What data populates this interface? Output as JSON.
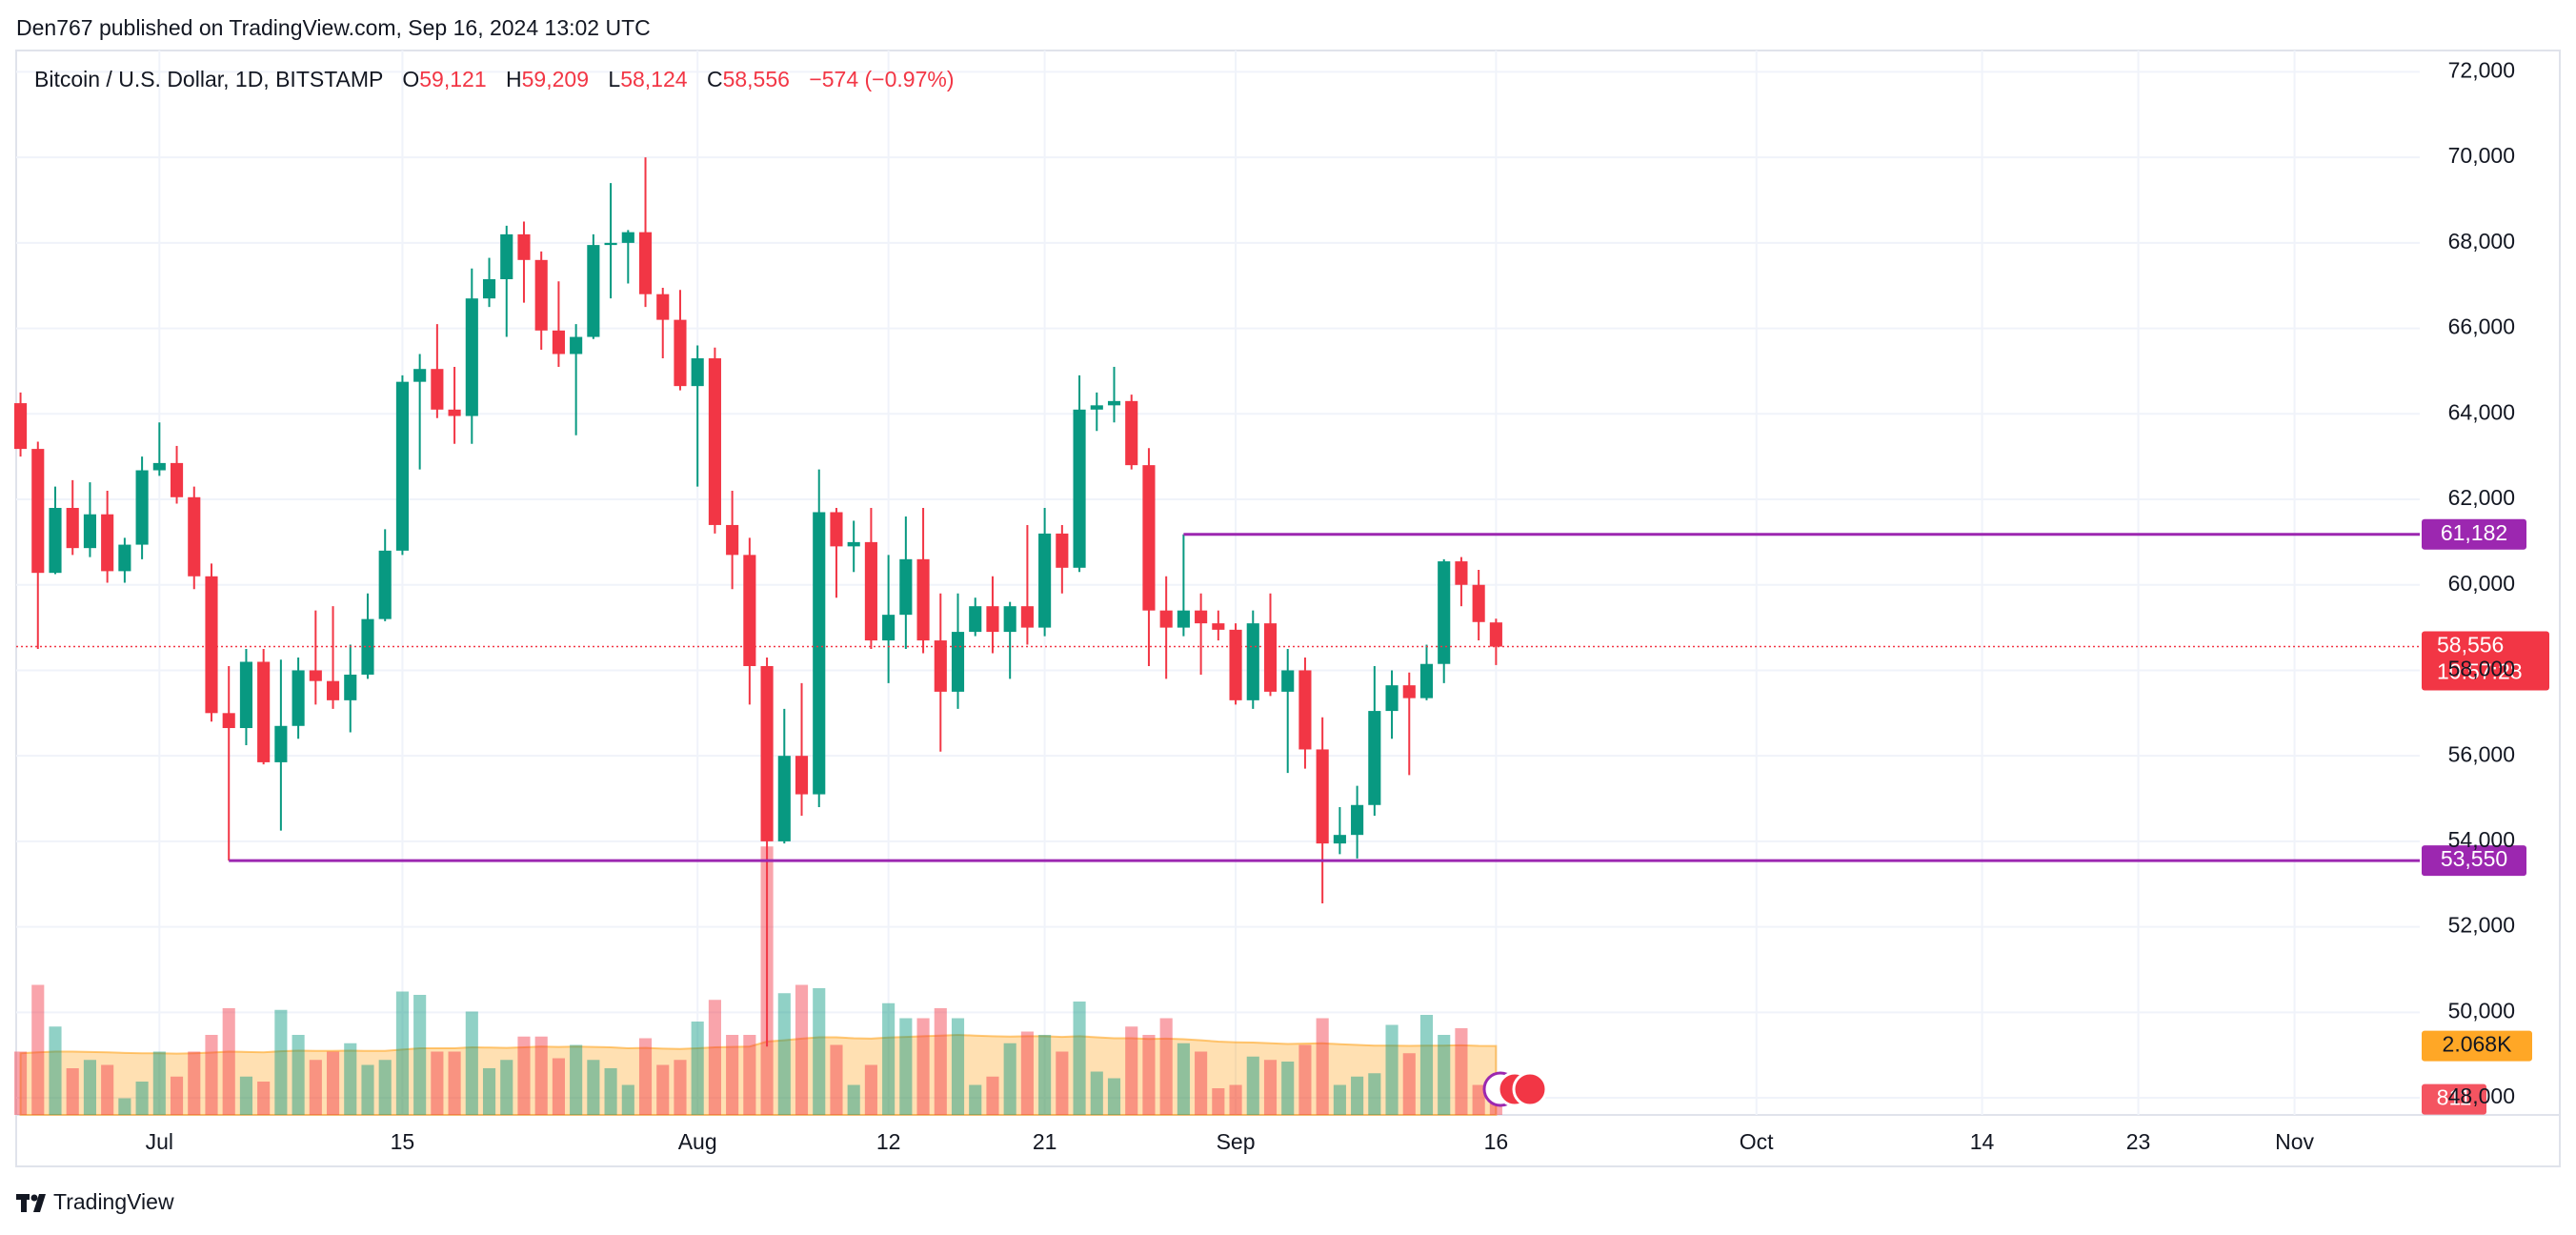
{
  "chart_data": {
    "type": "candlestick",
    "header": "Den767 published on TradingView.com, Sep 16, 2024 13:02 UTC",
    "legend": {
      "symbol": "Bitcoin / U.S. Dollar, 1D, BITSTAMP",
      "items": [
        {
          "key": "O",
          "value": "59,121"
        },
        {
          "key": "H",
          "value": "59,209"
        },
        {
          "key": "L",
          "value": "58,124"
        },
        {
          "key": "C",
          "value": "58,556"
        }
      ],
      "change": "−574 (−0.97%)"
    },
    "brand": "TradingView",
    "up_color": "#089981",
    "down_color": "#f23645",
    "x": [
      "2024-06-23",
      "2024-06-24",
      "2024-06-25",
      "2024-06-26",
      "2024-06-27",
      "2024-06-28",
      "2024-06-29",
      "2024-06-30",
      "2024-07-01",
      "2024-07-02",
      "2024-07-03",
      "2024-07-04",
      "2024-07-05",
      "2024-07-06",
      "2024-07-07",
      "2024-07-08",
      "2024-07-09",
      "2024-07-10",
      "2024-07-11",
      "2024-07-12",
      "2024-07-13",
      "2024-07-14",
      "2024-07-15",
      "2024-07-16",
      "2024-07-17",
      "2024-07-18",
      "2024-07-19",
      "2024-07-20",
      "2024-07-21",
      "2024-07-22",
      "2024-07-23",
      "2024-07-24",
      "2024-07-25",
      "2024-07-26",
      "2024-07-27",
      "2024-07-28",
      "2024-07-29",
      "2024-07-30",
      "2024-07-31",
      "2024-08-01",
      "2024-08-02",
      "2024-08-03",
      "2024-08-04",
      "2024-08-05",
      "2024-08-06",
      "2024-08-07",
      "2024-08-08",
      "2024-08-09",
      "2024-08-10",
      "2024-08-11",
      "2024-08-12",
      "2024-08-13",
      "2024-08-14",
      "2024-08-15",
      "2024-08-16",
      "2024-08-17",
      "2024-08-18",
      "2024-08-19",
      "2024-08-20",
      "2024-08-21",
      "2024-08-22",
      "2024-08-23",
      "2024-08-24",
      "2024-08-25",
      "2024-08-26",
      "2024-08-27",
      "2024-08-28",
      "2024-08-29",
      "2024-08-30",
      "2024-08-31",
      "2024-09-01",
      "2024-09-02",
      "2024-09-03",
      "2024-09-04",
      "2024-09-05",
      "2024-09-06",
      "2024-09-07",
      "2024-09-08",
      "2024-09-09",
      "2024-09-10",
      "2024-09-11",
      "2024-09-12",
      "2024-09-13",
      "2024-09-14",
      "2024-09-15",
      "2024-09-16"
    ],
    "open": [
      64250,
      63180,
      60280,
      61800,
      60860,
      61650,
      60320,
      60940,
      62680,
      62850,
      62050,
      60200,
      57000,
      56650,
      58200,
      55850,
      56700,
      58000,
      57750,
      57300,
      57900,
      59200,
      60800,
      64750,
      65050,
      64100,
      63950,
      66700,
      67150,
      68200,
      67600,
      65950,
      65400,
      65800,
      67950,
      68000,
      68250,
      66800,
      66200,
      64650,
      65300,
      61400,
      60700,
      58100,
      54000,
      56000,
      55100,
      61700,
      60900,
      61000,
      58700,
      59300,
      60600,
      58700,
      57500,
      58900,
      59500,
      58900,
      59500,
      59000,
      61200,
      60400,
      64100,
      64200,
      64300,
      62800,
      59400,
      59000,
      59400,
      59100,
      58950,
      57300,
      59100,
      57500,
      58000,
      56150,
      53950,
      54150,
      54850,
      57050,
      57650,
      57350,
      58150,
      60550,
      60000,
      59121
    ],
    "high": [
      64500,
      63350,
      62300,
      62450,
      62400,
      62200,
      61100,
      63000,
      63800,
      63250,
      62300,
      60500,
      58100,
      58500,
      58500,
      58250,
      58300,
      59400,
      59500,
      58600,
      59800,
      61300,
      64900,
      65400,
      66100,
      65100,
      67400,
      67650,
      68400,
      68500,
      67800,
      67100,
      66100,
      68200,
      69400,
      68300,
      70000,
      66950,
      66900,
      65600,
      65550,
      62200,
      61100,
      58300,
      57100,
      57700,
      62700,
      61800,
      61500,
      61800,
      60700,
      61600,
      61800,
      59800,
      59800,
      59700,
      60200,
      59600,
      61400,
      61800,
      61400,
      64900,
      64500,
      65100,
      64450,
      63200,
      60200,
      61182,
      59800,
      59400,
      59100,
      59400,
      59800,
      58500,
      58300,
      56900,
      54800,
      55300,
      58100,
      58000,
      57950,
      58600,
      60600,
      60650,
      60350,
      59209
    ],
    "low": [
      63000,
      58500,
      60250,
      60700,
      60650,
      60050,
      60050,
      60600,
      62550,
      61900,
      59900,
      56800,
      53550,
      56250,
      55800,
      54250,
      56400,
      57200,
      57100,
      56550,
      57800,
      59150,
      60700,
      62700,
      63900,
      63300,
      63300,
      66500,
      65800,
      66600,
      65500,
      65100,
      63500,
      65750,
      66700,
      67050,
      66500,
      65300,
      64550,
      62300,
      61200,
      59900,
      57200,
      49200,
      53950,
      54600,
      54800,
      59700,
      60300,
      58500,
      57700,
      58500,
      58400,
      56100,
      57100,
      58800,
      58400,
      57800,
      58600,
      58800,
      59800,
      60300,
      63600,
      63800,
      62700,
      58100,
      57800,
      58800,
      57900,
      58700,
      57200,
      57100,
      57400,
      55600,
      55700,
      52550,
      53700,
      53600,
      54600,
      56400,
      55550,
      57300,
      57700,
      59500,
      58700,
      58124
    ],
    "close": [
      63180,
      60280,
      61800,
      60860,
      61650,
      60320,
      60940,
      62680,
      62850,
      62050,
      60200,
      57000,
      56650,
      58200,
      55850,
      56700,
      58000,
      57750,
      57300,
      57900,
      59200,
      60800,
      64750,
      65050,
      64100,
      63950,
      66700,
      67150,
      68200,
      67600,
      65950,
      65400,
      65800,
      67950,
      68000,
      68250,
      66800,
      66200,
      64650,
      65300,
      61400,
      60700,
      58100,
      54000,
      56000,
      55100,
      61700,
      60900,
      61000,
      58700,
      59300,
      60600,
      58700,
      57500,
      58900,
      59500,
      58900,
      59500,
      59000,
      61200,
      60400,
      64100,
      64200,
      64300,
      62800,
      59400,
      59000,
      59400,
      59100,
      58950,
      57300,
      59100,
      57500,
      58000,
      56150,
      53950,
      54150,
      54850,
      57050,
      57650,
      57350,
      58150,
      60550,
      60000,
      59130,
      58556
    ],
    "volume": {
      "ylim": [
        0,
        10000
      ],
      "ma_color": "#ff9800",
      "values": [
        1900,
        3900,
        2650,
        1400,
        1650,
        1500,
        500,
        1000,
        1900,
        1150,
        1900,
        2400,
        3200,
        1150,
        1000,
        3150,
        2400,
        1650,
        1900,
        2150,
        1500,
        1650,
        3700,
        3600,
        1900,
        1900,
        3100,
        1400,
        1650,
        2350,
        2350,
        1700,
        2100,
        1650,
        1400,
        900,
        2300,
        1500,
        1650,
        2800,
        3450,
        2400,
        2400,
        8050,
        3650,
        3900,
        3800,
        2100,
        900,
        1500,
        3350,
        2900,
        2900,
        3200,
        2900,
        900,
        1150,
        2150,
        2500,
        2400,
        1900,
        3400,
        1300,
        1100,
        2650,
        2400,
        2900,
        2150,
        1900,
        800,
        900,
        1750,
        1650,
        1600,
        2100,
        2900,
        900,
        1150,
        1250,
        2700,
        1850,
        3000,
        2400,
        2600,
        900,
        811
      ],
      "ma": [
        1850,
        1880,
        1900,
        1900,
        1890,
        1880,
        1860,
        1850,
        1850,
        1840,
        1850,
        1870,
        1900,
        1890,
        1880,
        1910,
        1930,
        1920,
        1920,
        1930,
        1920,
        1920,
        1960,
        2000,
        2000,
        2000,
        2030,
        2020,
        2010,
        2030,
        2050,
        2040,
        2050,
        2040,
        2030,
        2000,
        2010,
        1990,
        1980,
        2000,
        2030,
        2040,
        2050,
        2200,
        2240,
        2290,
        2330,
        2330,
        2300,
        2290,
        2320,
        2340,
        2360,
        2380,
        2400,
        2380,
        2360,
        2350,
        2360,
        2360,
        2340,
        2360,
        2330,
        2300,
        2300,
        2280,
        2290,
        2270,
        2240,
        2200,
        2180,
        2170,
        2150,
        2130,
        2140,
        2150,
        2120,
        2100,
        2080,
        2080,
        2070,
        2080,
        2080,
        2090,
        2070,
        2068
      ],
      "ma_label": {
        "value": 2068,
        "label": "2.068K"
      },
      "last_label": {
        "value": 811,
        "label": "811"
      }
    },
    "xlim": [
      "2024-06-22T18:00Z",
      "2024-11-07T12:00Z"
    ],
    "xticks": [
      {
        "value": "2024-07-01",
        "label": "Jul"
      },
      {
        "value": "2024-07-15",
        "label": "15"
      },
      {
        "value": "2024-08-01",
        "label": "Aug"
      },
      {
        "value": "2024-08-12",
        "label": "12"
      },
      {
        "value": "2024-08-21",
        "label": "21"
      },
      {
        "value": "2024-09-01",
        "label": "Sep"
      },
      {
        "value": "2024-09-16",
        "label": "16"
      },
      {
        "value": "2024-10-01",
        "label": "Oct"
      },
      {
        "value": "2024-10-14",
        "label": "14"
      },
      {
        "value": "2024-10-23",
        "label": "23"
      },
      {
        "value": "2024-11-01",
        "label": "Nov"
      }
    ],
    "ylim": [
      47600,
      72500
    ],
    "yticks": [
      {
        "value": 48000,
        "label": "48,000"
      },
      {
        "value": 50000,
        "label": "50,000"
      },
      {
        "value": 52000,
        "label": "52,000"
      },
      {
        "value": 54000,
        "label": "54,000"
      },
      {
        "value": 56000,
        "label": "56,000"
      },
      {
        "value": 58000,
        "label": "58,000"
      },
      {
        "value": 60000,
        "label": "60,000"
      },
      {
        "value": 62000,
        "label": "62,000"
      },
      {
        "value": 64000,
        "label": "64,000"
      },
      {
        "value": 66000,
        "label": "66,000"
      },
      {
        "value": 68000,
        "label": "68,000"
      },
      {
        "value": 70000,
        "label": "70,000"
      },
      {
        "value": 72000,
        "label": "72,000"
      }
    ],
    "grid": true,
    "hlines": [
      {
        "value": 61182,
        "label": "61,182",
        "from": "2024-08-29",
        "color": "#9c27b0"
      },
      {
        "value": 53550,
        "label": "53,550",
        "from": "2024-07-05",
        "color": "#9c27b0"
      }
    ],
    "price_tag": {
      "value": 58556,
      "label": "58,556",
      "countdown": "10:57:28"
    }
  }
}
